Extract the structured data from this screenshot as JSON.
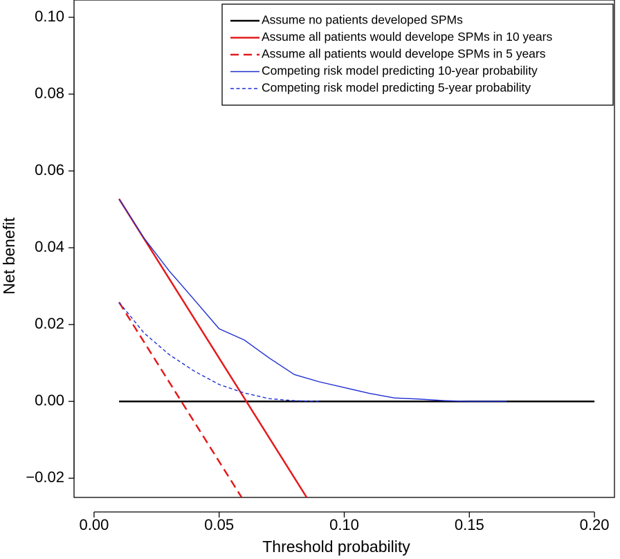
{
  "chart_data": {
    "type": "line",
    "title": "",
    "xlabel": "Threshold probability",
    "ylabel": "Net benefit",
    "xlim": [
      -0.008,
      0.208
    ],
    "ylim": [
      -0.025,
      0.1045
    ],
    "x_ticks": [
      0.0,
      0.05,
      0.1,
      0.15,
      0.2
    ],
    "x_tick_labels": [
      "0.00",
      "0.05",
      "0.10",
      "0.15",
      "0.20"
    ],
    "y_ticks": [
      -0.02,
      0.0,
      0.02,
      0.04,
      0.06,
      0.08,
      0.1
    ],
    "y_tick_labels": [
      "−0.02",
      "0.00",
      "0.02",
      "0.04",
      "0.06",
      "0.08",
      "0.10"
    ],
    "grid": false,
    "legend_position": "top-right",
    "series": [
      {
        "name": "Assume no patients developed SPMs",
        "color": "#000000",
        "dash": "solid",
        "width": 2.5,
        "points": [
          [
            0.01,
            0.0
          ],
          [
            0.2,
            0.0
          ]
        ]
      },
      {
        "name": "Assume all patients would develope SPMs in 10 years",
        "color": "#e41a1a",
        "dash": "solid",
        "width": 2.5,
        "points": [
          [
            0.01,
            0.0527
          ],
          [
            0.085,
            -0.025
          ]
        ]
      },
      {
        "name": "Assume all patients would develope SPMs in 5 years",
        "color": "#e41a1a",
        "dash": "dashed",
        "width": 2.5,
        "points": [
          [
            0.01,
            0.0258
          ],
          [
            0.059,
            -0.025
          ]
        ]
      },
      {
        "name": "Competing risk model predicting 10-year probability",
        "color": "#1f2fd1",
        "dash": "solid",
        "width": 1.4,
        "points": [
          [
            0.01,
            0.0527
          ],
          [
            0.02,
            0.0425
          ],
          [
            0.03,
            0.034
          ],
          [
            0.04,
            0.0265
          ],
          [
            0.05,
            0.0189
          ],
          [
            0.06,
            0.016
          ],
          [
            0.07,
            0.0113
          ],
          [
            0.08,
            0.007
          ],
          [
            0.09,
            0.0051
          ],
          [
            0.1,
            0.0036
          ],
          [
            0.11,
            0.0021
          ],
          [
            0.12,
            0.0009
          ],
          [
            0.13,
            0.0006
          ],
          [
            0.14,
            0.0002
          ],
          [
            0.15,
            0.0
          ],
          [
            0.165,
            0.0
          ]
        ]
      },
      {
        "name": "Competing risk model predicting 5-year probability",
        "color": "#1f2fd1",
        "dash": "dashed",
        "width": 1.4,
        "points": [
          [
            0.01,
            0.0258
          ],
          [
            0.02,
            0.0178
          ],
          [
            0.03,
            0.0122
          ],
          [
            0.04,
            0.0079
          ],
          [
            0.05,
            0.0044
          ],
          [
            0.06,
            0.0022
          ],
          [
            0.07,
            0.0007
          ],
          [
            0.08,
            0.0002
          ],
          [
            0.09,
            0.0
          ]
        ]
      }
    ]
  }
}
